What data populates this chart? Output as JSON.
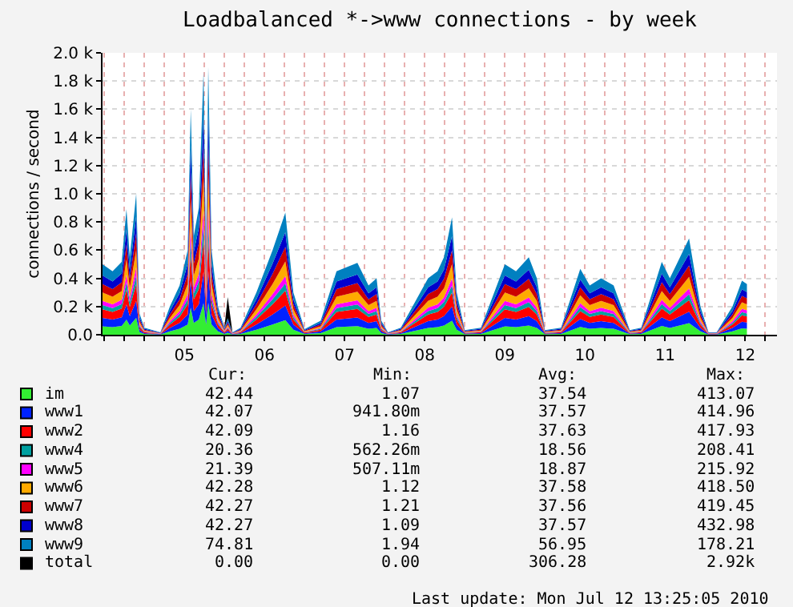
{
  "chart_data": {
    "type": "area",
    "stacked": true,
    "title": "Loadbalanced *->www connections - by week",
    "ylabel": "connections / second",
    "x": [
      "2010-07-04T11:30",
      "2010-07-04T14:30",
      "2010-07-04T17:15",
      "2010-07-04T18:40",
      "2010-07-04T19:40",
      "2010-07-04T21:35",
      "2010-07-04T22:35",
      "2010-07-05T00:00",
      "2010-07-05T04:50",
      "2010-07-05T07:40",
      "2010-07-05T10:35",
      "2010-07-05T13:00",
      "2010-07-05T13:55",
      "2010-07-05T14:50",
      "2010-07-05T16:20",
      "2010-07-05T17:45",
      "2010-07-05T18:30",
      "2010-07-05T19:10",
      "2010-07-05T20:10",
      "2010-07-05T22:05",
      "2010-07-06T00:00",
      "2010-07-06T01:00",
      "2010-07-06T02:25",
      "2010-07-06T04:50",
      "2010-07-06T09:35",
      "2010-07-06T14:25",
      "2010-07-06T18:15",
      "2010-07-06T20:40",
      "2010-07-07T00:00",
      "2010-07-07T04:50",
      "2010-07-07T09:35",
      "2010-07-07T15:50",
      "2010-07-07T19:10",
      "2010-07-07T21:35",
      "2010-07-07T23:00",
      "2010-07-08T01:00",
      "2010-07-08T04:50",
      "2010-07-08T13:00",
      "2010-07-08T15:50",
      "2010-07-08T17:45",
      "2010-07-08T20:10",
      "2010-07-08T21:35",
      "2010-07-09T00:00",
      "2010-07-09T04:50",
      "2010-07-09T12:00",
      "2010-07-09T15:20",
      "2010-07-09T19:10",
      "2010-07-09T21:35",
      "2010-07-10T00:00",
      "2010-07-10T04:50",
      "2010-07-10T10:35",
      "2010-07-10T13:25",
      "2010-07-10T16:50",
      "2010-07-10T20:35",
      "2010-07-11T01:25",
      "2010-07-11T04:50",
      "2010-07-11T11:00",
      "2010-07-11T13:25",
      "2010-07-11T19:10",
      "2010-07-11T22:35",
      "2010-07-12T01:00",
      "2010-07-12T03:25",
      "2010-07-12T08:10",
      "2010-07-12T11:00",
      "2010-07-12T12:30"
    ],
    "series": [
      {
        "name": "im",
        "color": "#33ee33",
        "values": [
          60,
          54,
          62,
          107,
          66,
          120,
          18,
          6,
          2,
          24,
          42,
          72,
          192,
          84,
          108,
          224,
          72,
          228,
          72,
          24,
          6,
          14,
          2,
          6,
          36,
          72,
          104,
          36,
          5,
          12,
          54,
          61,
          42,
          48,
          12,
          2,
          6,
          48,
          54,
          66,
          100,
          36,
          4,
          6,
          60,
          54,
          66,
          48,
          4,
          6,
          56,
          42,
          48,
          42,
          4,
          6,
          62,
          48,
          82,
          24,
          2,
          2,
          24,
          46,
          43
        ]
      },
      {
        "name": "www1",
        "color": "#0022ff",
        "values": [
          60,
          54,
          62,
          107,
          66,
          120,
          18,
          6,
          2,
          24,
          42,
          72,
          192,
          84,
          108,
          224,
          72,
          228,
          72,
          24,
          6,
          14,
          2,
          6,
          36,
          72,
          104,
          36,
          5,
          12,
          54,
          61,
          42,
          48,
          12,
          2,
          6,
          48,
          54,
          66,
          100,
          36,
          4,
          6,
          60,
          54,
          66,
          48,
          4,
          6,
          56,
          42,
          48,
          42,
          4,
          6,
          62,
          48,
          82,
          24,
          2,
          2,
          24,
          46,
          43
        ]
      },
      {
        "name": "www2",
        "color": "#ff0000",
        "values": [
          60,
          54,
          62,
          107,
          66,
          120,
          18,
          6,
          2,
          24,
          42,
          72,
          192,
          84,
          108,
          224,
          72,
          228,
          72,
          24,
          6,
          14,
          2,
          6,
          36,
          72,
          104,
          36,
          5,
          12,
          54,
          61,
          42,
          48,
          12,
          2,
          6,
          48,
          54,
          66,
          100,
          36,
          4,
          6,
          60,
          54,
          66,
          48,
          4,
          6,
          56,
          42,
          48,
          42,
          4,
          6,
          62,
          48,
          82,
          24,
          2,
          2,
          24,
          46,
          43
        ]
      },
      {
        "name": "www4",
        "color": "#00a0a0",
        "values": [
          30,
          27,
          31,
          53,
          33,
          60,
          9,
          3,
          1,
          12,
          21,
          36,
          96,
          42,
          54,
          112,
          36,
          114,
          36,
          12,
          3,
          7,
          1,
          3,
          18,
          36,
          52,
          18,
          2,
          6,
          27,
          31,
          21,
          24,
          6,
          1,
          3,
          24,
          27,
          33,
          50,
          18,
          2,
          3,
          30,
          27,
          33,
          24,
          2,
          3,
          28,
          21,
          24,
          21,
          2,
          3,
          31,
          24,
          41,
          12,
          1,
          1,
          12,
          23,
          22
        ]
      },
      {
        "name": "www5",
        "color": "#ff00ff",
        "values": [
          30,
          27,
          31,
          53,
          33,
          60,
          9,
          3,
          1,
          12,
          21,
          36,
          96,
          42,
          54,
          112,
          36,
          114,
          36,
          12,
          3,
          7,
          1,
          3,
          18,
          36,
          52,
          18,
          2,
          6,
          27,
          31,
          21,
          24,
          6,
          1,
          3,
          24,
          27,
          33,
          50,
          18,
          2,
          3,
          30,
          27,
          33,
          24,
          2,
          3,
          28,
          21,
          24,
          21,
          2,
          3,
          31,
          24,
          41,
          12,
          1,
          1,
          12,
          23,
          22
        ]
      },
      {
        "name": "www6",
        "color": "#ffaa00",
        "values": [
          60,
          54,
          62,
          107,
          66,
          120,
          18,
          6,
          2,
          24,
          42,
          72,
          192,
          84,
          108,
          224,
          72,
          228,
          72,
          24,
          6,
          14,
          2,
          6,
          36,
          72,
          104,
          36,
          5,
          12,
          54,
          61,
          42,
          48,
          12,
          2,
          6,
          48,
          54,
          66,
          100,
          36,
          4,
          6,
          60,
          54,
          66,
          48,
          4,
          6,
          56,
          42,
          48,
          42,
          4,
          6,
          62,
          48,
          82,
          24,
          2,
          2,
          24,
          46,
          43
        ]
      },
      {
        "name": "www7",
        "color": "#cc0000",
        "values": [
          60,
          54,
          62,
          107,
          66,
          120,
          18,
          6,
          2,
          24,
          42,
          72,
          192,
          84,
          108,
          224,
          72,
          228,
          72,
          24,
          6,
          14,
          2,
          6,
          36,
          72,
          104,
          36,
          5,
          12,
          54,
          61,
          42,
          48,
          12,
          2,
          6,
          48,
          54,
          66,
          100,
          36,
          4,
          6,
          60,
          54,
          66,
          48,
          4,
          6,
          56,
          42,
          48,
          42,
          4,
          6,
          62,
          48,
          82,
          24,
          2,
          2,
          24,
          46,
          43
        ]
      },
      {
        "name": "www8",
        "color": "#0000cc",
        "values": [
          60,
          54,
          62,
          107,
          66,
          120,
          18,
          6,
          2,
          24,
          42,
          72,
          192,
          84,
          108,
          224,
          72,
          228,
          72,
          24,
          6,
          14,
          2,
          6,
          36,
          72,
          104,
          36,
          5,
          12,
          54,
          61,
          42,
          48,
          12,
          2,
          6,
          48,
          54,
          66,
          100,
          36,
          4,
          6,
          60,
          54,
          66,
          48,
          4,
          6,
          56,
          42,
          48,
          42,
          4,
          6,
          62,
          48,
          82,
          24,
          2,
          2,
          24,
          46,
          43
        ]
      },
      {
        "name": "www9",
        "color": "#0080c0",
        "values": [
          80,
          72,
          83,
          142,
          88,
          160,
          24,
          8,
          3,
          32,
          56,
          96,
          256,
          112,
          144,
          299,
          96,
          304,
          96,
          32,
          8,
          19,
          3,
          8,
          48,
          96,
          139,
          48,
          6,
          16,
          72,
          82,
          56,
          64,
          16,
          3,
          8,
          64,
          72,
          88,
          133,
          48,
          5,
          8,
          80,
          72,
          88,
          64,
          5,
          8,
          75,
          56,
          64,
          56,
          5,
          8,
          83,
          64,
          109,
          32,
          3,
          3,
          32,
          61,
          58
        ]
      },
      {
        "name": "total",
        "color": "#000000",
        "values": [
          null,
          null,
          null,
          null,
          null,
          null,
          null,
          null,
          null,
          null,
          null,
          null,
          null,
          null,
          null,
          null,
          null,
          null,
          null,
          null,
          0,
          150,
          0,
          null,
          null,
          null,
          null,
          null,
          null,
          null,
          null,
          null,
          null,
          null,
          null,
          null,
          null,
          null,
          null,
          null,
          null,
          null,
          null,
          null,
          null,
          null,
          null,
          null,
          null,
          null,
          null,
          null,
          null,
          null,
          null,
          null,
          null,
          null,
          null,
          null,
          null,
          null,
          null,
          null,
          null
        ]
      }
    ],
    "xlim": [
      "2010-07-04T11:30",
      "2010-07-12T21:30"
    ],
    "xticks": [
      {
        "value": "2010-07-04T12:00",
        "label": null
      },
      {
        "value": "2010-07-04T18:00",
        "label": null
      },
      {
        "value": "2010-07-05T00:00",
        "label": null
      },
      {
        "value": "2010-07-05T06:00",
        "label": null
      },
      {
        "value": "2010-07-05T12:00",
        "label": "05"
      },
      {
        "value": "2010-07-05T18:00",
        "label": null
      },
      {
        "value": "2010-07-06T00:00",
        "label": null
      },
      {
        "value": "2010-07-06T06:00",
        "label": null
      },
      {
        "value": "2010-07-06T12:00",
        "label": "06"
      },
      {
        "value": "2010-07-06T18:00",
        "label": null
      },
      {
        "value": "2010-07-07T00:00",
        "label": null
      },
      {
        "value": "2010-07-07T06:00",
        "label": null
      },
      {
        "value": "2010-07-07T12:00",
        "label": "07"
      },
      {
        "value": "2010-07-07T18:00",
        "label": null
      },
      {
        "value": "2010-07-08T00:00",
        "label": null
      },
      {
        "value": "2010-07-08T06:00",
        "label": null
      },
      {
        "value": "2010-07-08T12:00",
        "label": "08"
      },
      {
        "value": "2010-07-08T18:00",
        "label": null
      },
      {
        "value": "2010-07-09T00:00",
        "label": null
      },
      {
        "value": "2010-07-09T06:00",
        "label": null
      },
      {
        "value": "2010-07-09T12:00",
        "label": "09"
      },
      {
        "value": "2010-07-09T18:00",
        "label": null
      },
      {
        "value": "2010-07-10T00:00",
        "label": null
      },
      {
        "value": "2010-07-10T06:00",
        "label": null
      },
      {
        "value": "2010-07-10T12:00",
        "label": "10"
      },
      {
        "value": "2010-07-10T18:00",
        "label": null
      },
      {
        "value": "2010-07-11T00:00",
        "label": null
      },
      {
        "value": "2010-07-11T06:00",
        "label": null
      },
      {
        "value": "2010-07-11T12:00",
        "label": "11"
      },
      {
        "value": "2010-07-11T18:00",
        "label": null
      },
      {
        "value": "2010-07-12T00:00",
        "label": null
      },
      {
        "value": "2010-07-12T06:00",
        "label": null
      },
      {
        "value": "2010-07-12T12:00",
        "label": "12"
      },
      {
        "value": "2010-07-12T18:00",
        "label": null
      }
    ],
    "ylim": [
      0,
      2000
    ],
    "yticks": [
      {
        "value": 0,
        "label": "0.0"
      },
      {
        "value": 200,
        "label": "0.2 k"
      },
      {
        "value": 400,
        "label": "0.4 k"
      },
      {
        "value": 600,
        "label": "0.6 k"
      },
      {
        "value": 800,
        "label": "0.8 k"
      },
      {
        "value": 1000,
        "label": "1.0 k"
      },
      {
        "value": 1200,
        "label": "1.2 k"
      },
      {
        "value": 1400,
        "label": "1.4 k"
      },
      {
        "value": 1600,
        "label": "1.6 k"
      },
      {
        "value": 1800,
        "label": "1.8 k"
      },
      {
        "value": 2000,
        "label": "2.0 k"
      }
    ],
    "grid": true,
    "legend": "bottom",
    "annotations": [
      "Cur:",
      "Min:",
      "Avg:",
      "Max:",
      "42.44",
      "1.07",
      "37.54",
      "413.07",
      "42.07",
      "941.80m",
      "37.57",
      "414.96",
      "42.09",
      "1.16",
      "37.63",
      "417.93",
      "20.36",
      "562.26m",
      "18.56",
      "208.41",
      "21.39",
      "507.11m",
      "18.87",
      "215.92",
      "42.28",
      "1.12",
      "37.58",
      "418.50",
      "42.27",
      "1.21",
      "37.56",
      "419.45",
      "42.27",
      "1.09",
      "37.57",
      "432.98",
      "74.81",
      "1.94",
      "56.95",
      "178.21",
      "0.00",
      "0.00",
      "306.28",
      "2.92k",
      "Last update: Mon Jul 12 13:25:05 2010"
    ]
  }
}
